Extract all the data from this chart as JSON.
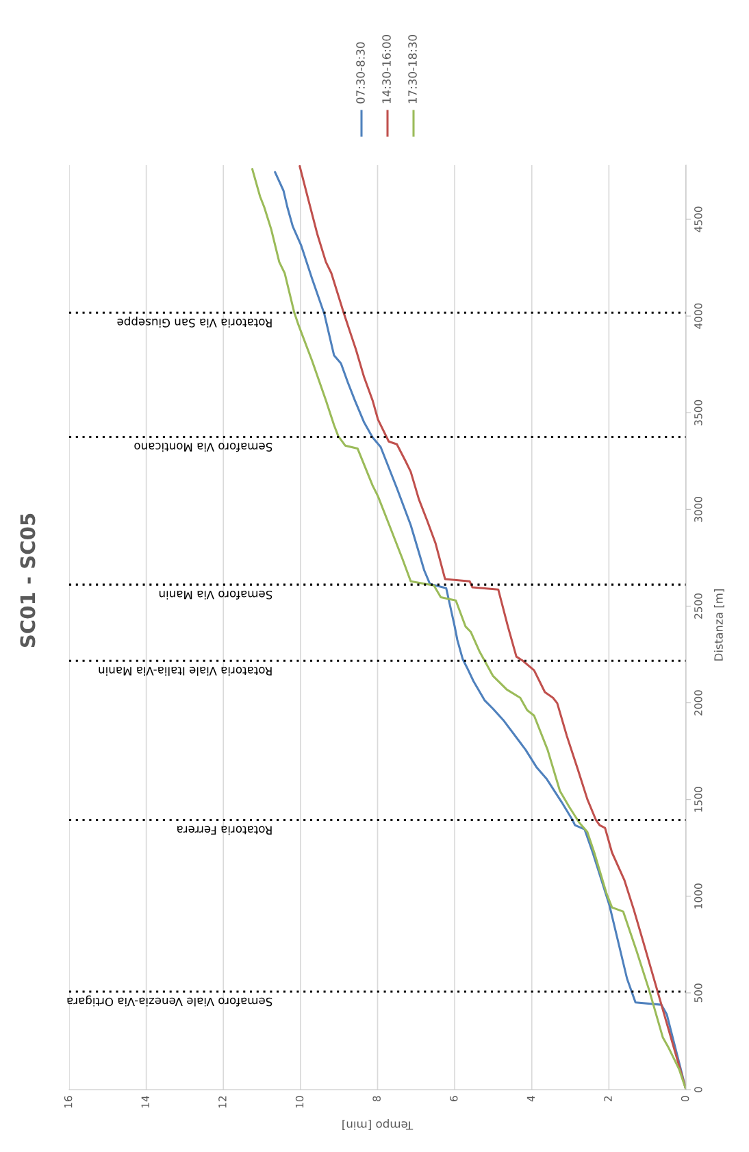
{
  "chart_data": {
    "type": "line",
    "title": "SC01 - SC05",
    "xlabel": "Tempo [min]",
    "ylabel": "Distanza [m]",
    "xlim": [
      16,
      0
    ],
    "xticks": [
      0,
      2,
      4,
      6,
      8,
      10,
      12,
      14,
      16
    ],
    "ylim": [
      0,
      4780
    ],
    "yticks": [
      0,
      500,
      1000,
      1500,
      2000,
      2500,
      3000,
      3500,
      4000,
      4500
    ],
    "grid": "x",
    "legend": "top",
    "marker": "none",
    "line_style": "solid",
    "series": [
      {
        "name": "07:30-8:30",
        "color": "#4f81bd",
        "values": [
          0,
          390,
          439,
          451,
          574,
          956,
          1226,
          1346,
          1367,
          1396,
          1488,
          1608,
          1665,
          1757,
          1906,
          1970,
          2012,
          2111,
          2182,
          2225,
          2324,
          2395,
          2593,
          2614,
          2685,
          2919,
          3110,
          3323,
          3372,
          3450,
          3564,
          3656,
          3755,
          3797,
          4010,
          4194,
          4364,
          4463,
          4563,
          4648,
          4744
        ],
        "x": [
          0,
          0.5,
          0.64,
          1.31,
          1.53,
          1.99,
          2.42,
          2.63,
          2.88,
          2.95,
          3.23,
          3.62,
          3.87,
          4.16,
          4.72,
          5.01,
          5.22,
          5.51,
          5.68,
          5.79,
          5.93,
          6.0,
          6.22,
          6.64,
          6.79,
          7.14,
          7.5,
          7.92,
          8.13,
          8.35,
          8.59,
          8.77,
          8.95,
          9.13,
          9.38,
          9.7,
          9.98,
          10.2,
          10.34,
          10.44,
          10.66
        ]
      },
      {
        "name": "14:30-16:00",
        "color": "#c0504d",
        "values": [
          0,
          461,
          758,
          928,
          1084,
          1226,
          1353,
          1367,
          1396,
          1502,
          1658,
          1828,
          1998,
          2026,
          2055,
          2168,
          2217,
          2239,
          2395,
          2586,
          2597,
          2628,
          2640,
          2827,
          2940,
          3053,
          3195,
          3252,
          3337,
          3351,
          3465,
          3564,
          3684,
          3826,
          4017,
          4222,
          4279,
          4421,
          4605,
          4775
        ],
        "x": [
          0,
          0.67,
          1.1,
          1.35,
          1.6,
          1.92,
          2.1,
          2.24,
          2.34,
          2.56,
          2.81,
          3.09,
          3.34,
          3.45,
          3.66,
          3.94,
          4.23,
          4.4,
          4.62,
          4.87,
          5.54,
          5.61,
          6.25,
          6.5,
          6.71,
          6.93,
          7.14,
          7.28,
          7.5,
          7.71,
          7.99,
          8.13,
          8.35,
          8.56,
          8.88,
          9.2,
          9.34,
          9.56,
          9.8,
          10.02
        ]
      },
      {
        "name": "17:30-18:30",
        "color": "#9bbb59",
        "values": [
          0,
          106,
          220,
          269,
          517,
          716,
          921,
          942,
          1013,
          1226,
          1332,
          1381,
          1459,
          1544,
          1757,
          1934,
          1962,
          2026,
          2069,
          2140,
          2267,
          2366,
          2395,
          2529,
          2546,
          2607,
          2628,
          2742,
          2926,
          3068,
          3124,
          3315,
          3330,
          3379,
          3436,
          3564,
          3769,
          3953,
          4017,
          4222,
          4279,
          4449,
          4563,
          4619,
          4760
        ],
        "x": [
          0,
          0.18,
          0.46,
          0.6,
          0.96,
          1.28,
          1.63,
          1.92,
          2.06,
          2.38,
          2.56,
          2.77,
          3.02,
          3.27,
          3.59,
          3.94,
          4.12,
          4.3,
          4.65,
          5.01,
          5.36,
          5.58,
          5.72,
          5.97,
          6.36,
          6.54,
          7.14,
          7.35,
          7.71,
          7.99,
          8.13,
          8.52,
          8.84,
          9.02,
          9.13,
          9.34,
          9.7,
          10.05,
          10.16,
          10.41,
          10.55,
          10.76,
          10.94,
          11.05,
          11.25
        ]
      }
    ],
    "ref_lines": [
      {
        "axis": "y",
        "value": 507,
        "label": "Semaforo Viale Venezia-Via Ortigara",
        "color": "#000000",
        "line_style": "dotted"
      },
      {
        "axis": "y",
        "value": 1394,
        "label": "Rotatoria Ferrera",
        "color": "#000000",
        "line_style": "dotted"
      },
      {
        "axis": "y",
        "value": 2217,
        "label": "Rotatoria Viale Italia-Via Manin",
        "color": "#000000",
        "line_style": "dotted"
      },
      {
        "axis": "y",
        "value": 2611,
        "label": "Semaforo Via Manin",
        "color": "#000000",
        "line_style": "dotted"
      },
      {
        "axis": "y",
        "value": 3375,
        "label": "Semaforo Via Monticano",
        "color": "#000000",
        "line_style": "dotted"
      },
      {
        "axis": "y",
        "value": 4017,
        "label": "Rotatoria Via San Giuseppe",
        "color": "#000000",
        "line_style": "dotted"
      }
    ]
  }
}
